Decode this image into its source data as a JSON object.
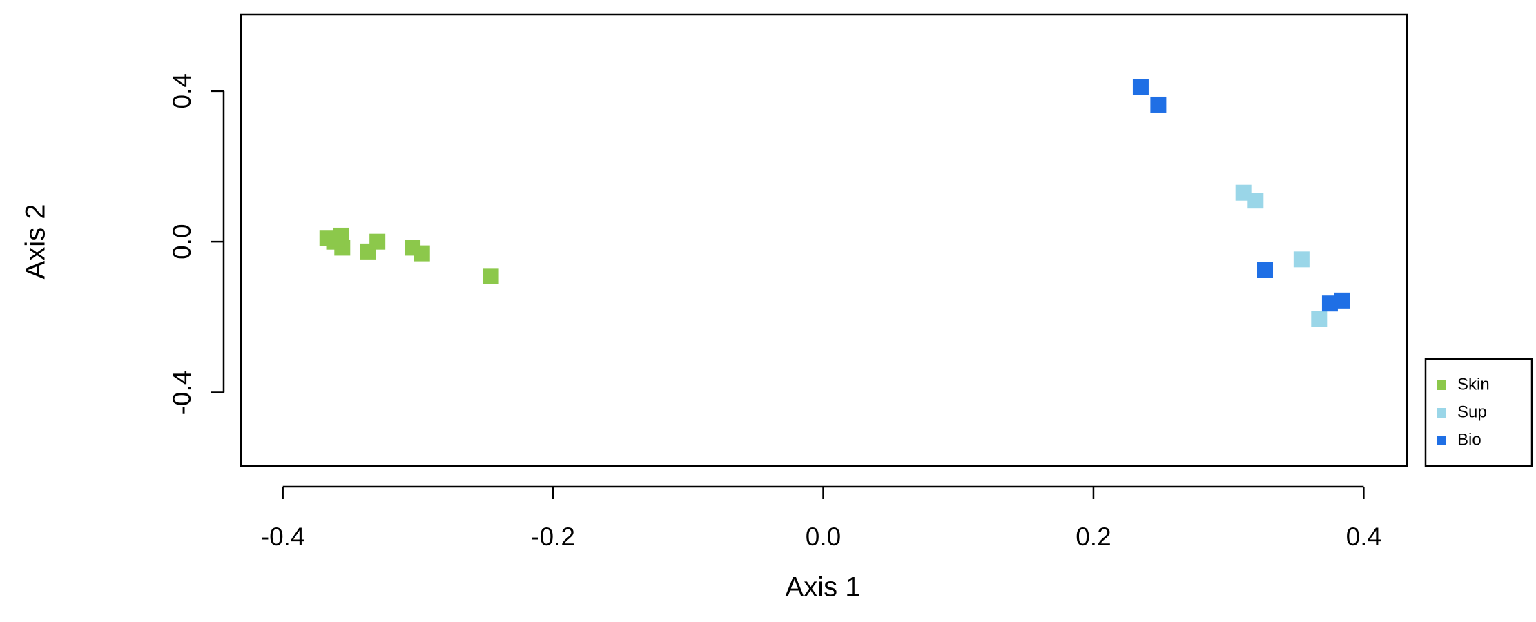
{
  "chart_data": {
    "type": "scatter",
    "x_label": "Axis 1",
    "y_label": "Axis 2",
    "xlim": [
      -0.431,
      0.432
    ],
    "ylim": [
      -0.595,
      0.603
    ],
    "xticks": [
      -0.4,
      -0.2,
      {
        "value": 0,
        "label": "0.0"
      },
      0.2,
      0.4
    ],
    "yticks": [
      -0.4,
      {
        "value": 0,
        "label": "0.0"
      },
      0.4
    ],
    "legend": "right-bottom",
    "series": [
      {
        "name": "Skin",
        "color": "#8cc84b",
        "x": [
          -0.367,
          -0.362,
          -0.357,
          -0.356,
          -0.36,
          -0.337,
          -0.33,
          -0.304,
          -0.297,
          -0.246
        ],
        "y": [
          0.01,
          0.0,
          0.016,
          -0.016,
          0.008,
          -0.026,
          0.0,
          -0.016,
          -0.031,
          -0.091
        ]
      },
      {
        "name": "Sup",
        "color": "#9ad6e8",
        "x": [
          0.311,
          0.32,
          0.354,
          0.367
        ],
        "y": [
          0.13,
          0.109,
          -0.047,
          -0.205
        ]
      },
      {
        "name": "Bio",
        "color": "#1f6fe5",
        "x": [
          0.235,
          0.248,
          0.327,
          0.375,
          0.384
        ],
        "y": [
          0.41,
          0.364,
          -0.075,
          -0.164,
          -0.156
        ]
      }
    ]
  }
}
